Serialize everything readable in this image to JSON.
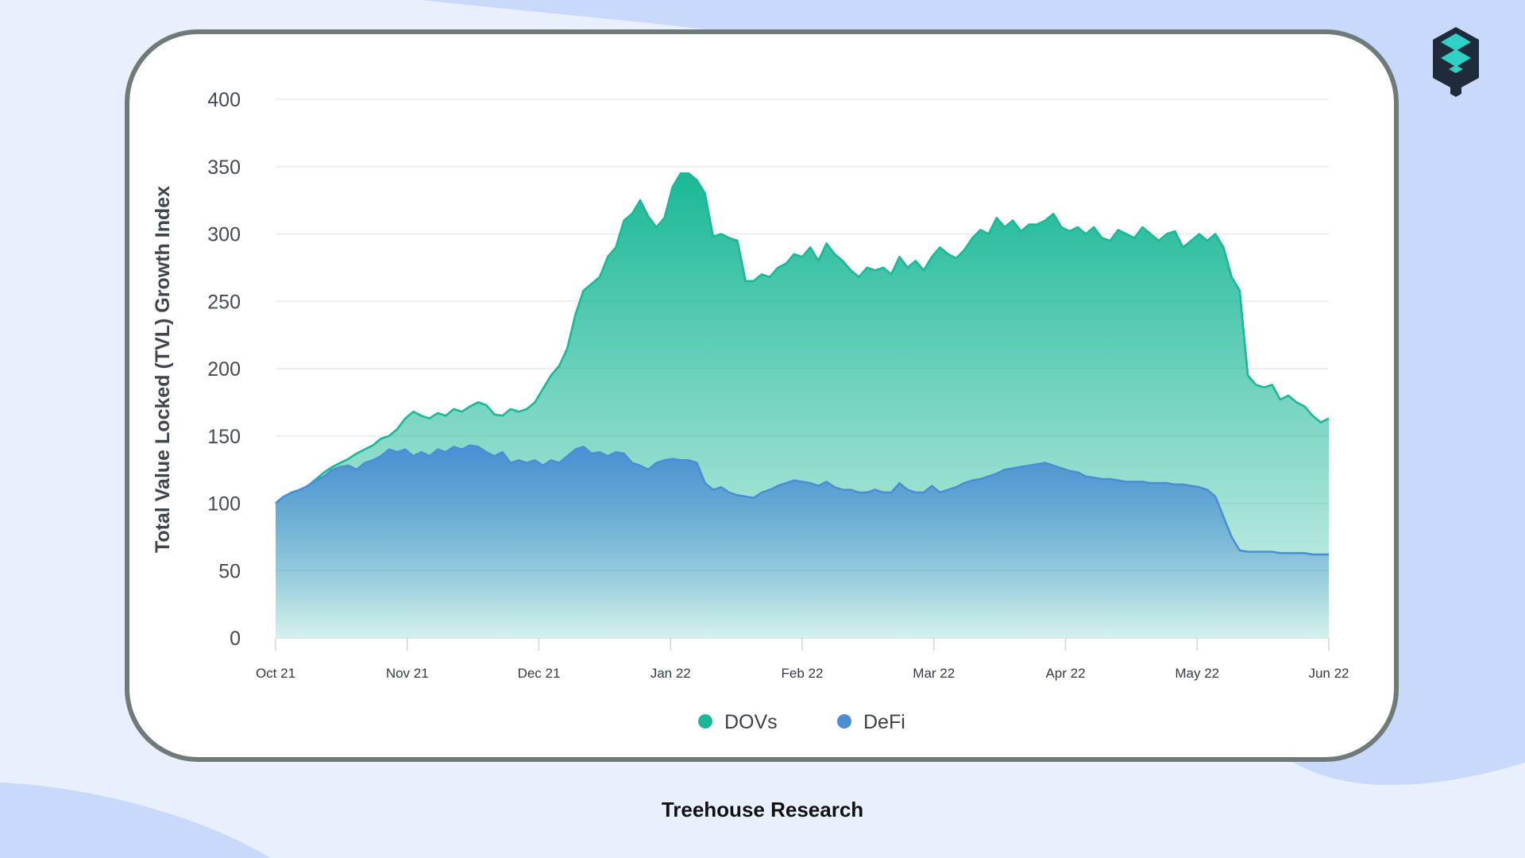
{
  "colors": {
    "background": "#e9f0fd",
    "blob": "#c9d9fb",
    "dovs": "#1ab896",
    "defi": "#4a8fd4"
  },
  "logo_icon": "treehouse-logo-icon",
  "footer": {
    "text": "Treehouse Research"
  },
  "chart_data": {
    "type": "area",
    "title": "",
    "xlabel": "",
    "ylabel": "Total Value Locked (TVL) Growth Index",
    "ylim": [
      0,
      400
    ],
    "yticks": [
      0,
      50,
      100,
      150,
      200,
      250,
      300,
      350,
      400
    ],
    "xticks": [
      "Oct 21",
      "Nov 21",
      "Dec 21",
      "Jan 22",
      "Feb 22",
      "Mar 22",
      "Apr 22",
      "May 22",
      "Jun 22"
    ],
    "grid": true,
    "legend_position": "bottom-center",
    "series": [
      {
        "name": "DOVs",
        "color": "#1ab896",
        "points": [
          [
            0,
            100
          ],
          [
            2,
            105
          ],
          [
            4,
            108
          ],
          [
            6,
            110
          ],
          [
            8,
            113
          ],
          [
            10,
            118
          ],
          [
            12,
            123
          ],
          [
            14,
            127
          ],
          [
            16,
            130
          ],
          [
            18,
            133
          ],
          [
            20,
            137
          ],
          [
            22,
            140
          ],
          [
            24,
            143
          ],
          [
            26,
            148
          ],
          [
            28,
            150
          ],
          [
            30,
            155
          ],
          [
            32,
            163
          ],
          [
            34,
            168
          ],
          [
            36,
            165
          ],
          [
            38,
            163
          ],
          [
            40,
            167
          ],
          [
            42,
            165
          ],
          [
            44,
            170
          ],
          [
            46,
            168
          ],
          [
            48,
            172
          ],
          [
            50,
            175
          ],
          [
            52,
            173
          ],
          [
            54,
            166
          ],
          [
            56,
            165
          ],
          [
            58,
            170
          ],
          [
            60,
            168
          ],
          [
            62,
            170
          ],
          [
            64,
            175
          ],
          [
            66,
            185
          ],
          [
            68,
            195
          ],
          [
            70,
            202
          ],
          [
            72,
            215
          ],
          [
            74,
            240
          ],
          [
            76,
            258
          ],
          [
            78,
            263
          ],
          [
            80,
            268
          ],
          [
            82,
            283
          ],
          [
            84,
            290
          ],
          [
            86,
            310
          ],
          [
            88,
            315
          ],
          [
            90,
            325
          ],
          [
            92,
            313
          ],
          [
            94,
            305
          ],
          [
            96,
            312
          ],
          [
            98,
            335
          ],
          [
            100,
            345
          ],
          [
            102,
            345
          ],
          [
            104,
            340
          ],
          [
            106,
            330
          ],
          [
            108,
            298
          ],
          [
            110,
            300
          ],
          [
            112,
            297
          ],
          [
            114,
            295
          ],
          [
            116,
            265
          ],
          [
            118,
            265
          ],
          [
            120,
            270
          ],
          [
            122,
            268
          ],
          [
            124,
            275
          ],
          [
            126,
            278
          ],
          [
            128,
            285
          ],
          [
            130,
            283
          ],
          [
            132,
            290
          ],
          [
            134,
            280
          ],
          [
            136,
            293
          ],
          [
            138,
            285
          ],
          [
            140,
            280
          ],
          [
            142,
            273
          ],
          [
            144,
            268
          ],
          [
            146,
            275
          ],
          [
            148,
            273
          ],
          [
            150,
            275
          ],
          [
            152,
            270
          ],
          [
            154,
            283
          ],
          [
            156,
            275
          ],
          [
            158,
            280
          ],
          [
            160,
            273
          ],
          [
            162,
            283
          ],
          [
            164,
            290
          ],
          [
            166,
            285
          ],
          [
            168,
            282
          ],
          [
            170,
            288
          ],
          [
            172,
            297
          ],
          [
            174,
            303
          ],
          [
            176,
            300
          ],
          [
            178,
            312
          ],
          [
            180,
            305
          ],
          [
            182,
            310
          ],
          [
            184,
            302
          ],
          [
            186,
            307
          ],
          [
            188,
            307
          ],
          [
            190,
            310
          ],
          [
            192,
            315
          ],
          [
            194,
            305
          ],
          [
            196,
            302
          ],
          [
            198,
            305
          ],
          [
            200,
            300
          ],
          [
            202,
            305
          ],
          [
            204,
            297
          ],
          [
            206,
            295
          ],
          [
            208,
            303
          ],
          [
            210,
            300
          ],
          [
            212,
            297
          ],
          [
            214,
            305
          ],
          [
            216,
            300
          ],
          [
            218,
            295
          ],
          [
            220,
            300
          ],
          [
            222,
            302
          ],
          [
            224,
            290
          ],
          [
            226,
            295
          ],
          [
            228,
            300
          ],
          [
            230,
            295
          ],
          [
            232,
            300
          ],
          [
            234,
            290
          ],
          [
            236,
            268
          ],
          [
            238,
            258
          ],
          [
            240,
            195
          ],
          [
            242,
            188
          ],
          [
            244,
            186
          ],
          [
            246,
            188
          ],
          [
            248,
            177
          ],
          [
            250,
            180
          ],
          [
            252,
            175
          ],
          [
            254,
            172
          ],
          [
            256,
            165
          ],
          [
            258,
            160
          ],
          [
            260,
            163
          ]
        ]
      },
      {
        "name": "DeFi",
        "color": "#4a8fd4",
        "points": [
          [
            0,
            100
          ],
          [
            2,
            105
          ],
          [
            4,
            108
          ],
          [
            6,
            110
          ],
          [
            8,
            113
          ],
          [
            10,
            117
          ],
          [
            12,
            120
          ],
          [
            14,
            125
          ],
          [
            16,
            127
          ],
          [
            18,
            128
          ],
          [
            20,
            125
          ],
          [
            22,
            130
          ],
          [
            24,
            132
          ],
          [
            26,
            135
          ],
          [
            28,
            140
          ],
          [
            30,
            138
          ],
          [
            32,
            140
          ],
          [
            34,
            135
          ],
          [
            36,
            138
          ],
          [
            38,
            135
          ],
          [
            40,
            140
          ],
          [
            42,
            138
          ],
          [
            44,
            142
          ],
          [
            46,
            140
          ],
          [
            48,
            143
          ],
          [
            50,
            142
          ],
          [
            52,
            138
          ],
          [
            54,
            135
          ],
          [
            56,
            138
          ],
          [
            58,
            130
          ],
          [
            60,
            132
          ],
          [
            62,
            130
          ],
          [
            64,
            132
          ],
          [
            66,
            128
          ],
          [
            68,
            132
          ],
          [
            70,
            130
          ],
          [
            72,
            135
          ],
          [
            74,
            140
          ],
          [
            76,
            142
          ],
          [
            78,
            137
          ],
          [
            80,
            138
          ],
          [
            82,
            135
          ],
          [
            84,
            138
          ],
          [
            86,
            137
          ],
          [
            88,
            130
          ],
          [
            90,
            128
          ],
          [
            92,
            125
          ],
          [
            94,
            130
          ],
          [
            96,
            132
          ],
          [
            98,
            133
          ],
          [
            100,
            132
          ],
          [
            102,
            132
          ],
          [
            104,
            130
          ],
          [
            106,
            115
          ],
          [
            108,
            110
          ],
          [
            110,
            112
          ],
          [
            112,
            108
          ],
          [
            114,
            106
          ],
          [
            116,
            105
          ],
          [
            118,
            104
          ],
          [
            120,
            108
          ],
          [
            122,
            110
          ],
          [
            124,
            113
          ],
          [
            126,
            115
          ],
          [
            128,
            117
          ],
          [
            130,
            116
          ],
          [
            132,
            115
          ],
          [
            134,
            113
          ],
          [
            136,
            116
          ],
          [
            138,
            112
          ],
          [
            140,
            110
          ],
          [
            142,
            110
          ],
          [
            144,
            108
          ],
          [
            146,
            108
          ],
          [
            148,
            110
          ],
          [
            150,
            108
          ],
          [
            152,
            108
          ],
          [
            154,
            115
          ],
          [
            156,
            110
          ],
          [
            158,
            108
          ],
          [
            160,
            108
          ],
          [
            162,
            113
          ],
          [
            164,
            108
          ],
          [
            166,
            110
          ],
          [
            168,
            112
          ],
          [
            170,
            115
          ],
          [
            172,
            117
          ],
          [
            174,
            118
          ],
          [
            176,
            120
          ],
          [
            178,
            122
          ],
          [
            180,
            125
          ],
          [
            182,
            126
          ],
          [
            184,
            127
          ],
          [
            186,
            128
          ],
          [
            188,
            129
          ],
          [
            190,
            130
          ],
          [
            192,
            128
          ],
          [
            194,
            126
          ],
          [
            196,
            124
          ],
          [
            198,
            123
          ],
          [
            200,
            120
          ],
          [
            202,
            119
          ],
          [
            204,
            118
          ],
          [
            206,
            118
          ],
          [
            208,
            117
          ],
          [
            210,
            116
          ],
          [
            212,
            116
          ],
          [
            214,
            116
          ],
          [
            216,
            115
          ],
          [
            218,
            115
          ],
          [
            220,
            115
          ],
          [
            222,
            114
          ],
          [
            224,
            114
          ],
          [
            226,
            113
          ],
          [
            228,
            112
          ],
          [
            230,
            110
          ],
          [
            232,
            105
          ],
          [
            234,
            90
          ],
          [
            236,
            75
          ],
          [
            238,
            65
          ],
          [
            240,
            64
          ],
          [
            242,
            64
          ],
          [
            244,
            64
          ],
          [
            246,
            64
          ],
          [
            248,
            63
          ],
          [
            250,
            63
          ],
          [
            252,
            63
          ],
          [
            254,
            63
          ],
          [
            256,
            62
          ],
          [
            258,
            62
          ],
          [
            260,
            62
          ]
        ]
      }
    ]
  }
}
